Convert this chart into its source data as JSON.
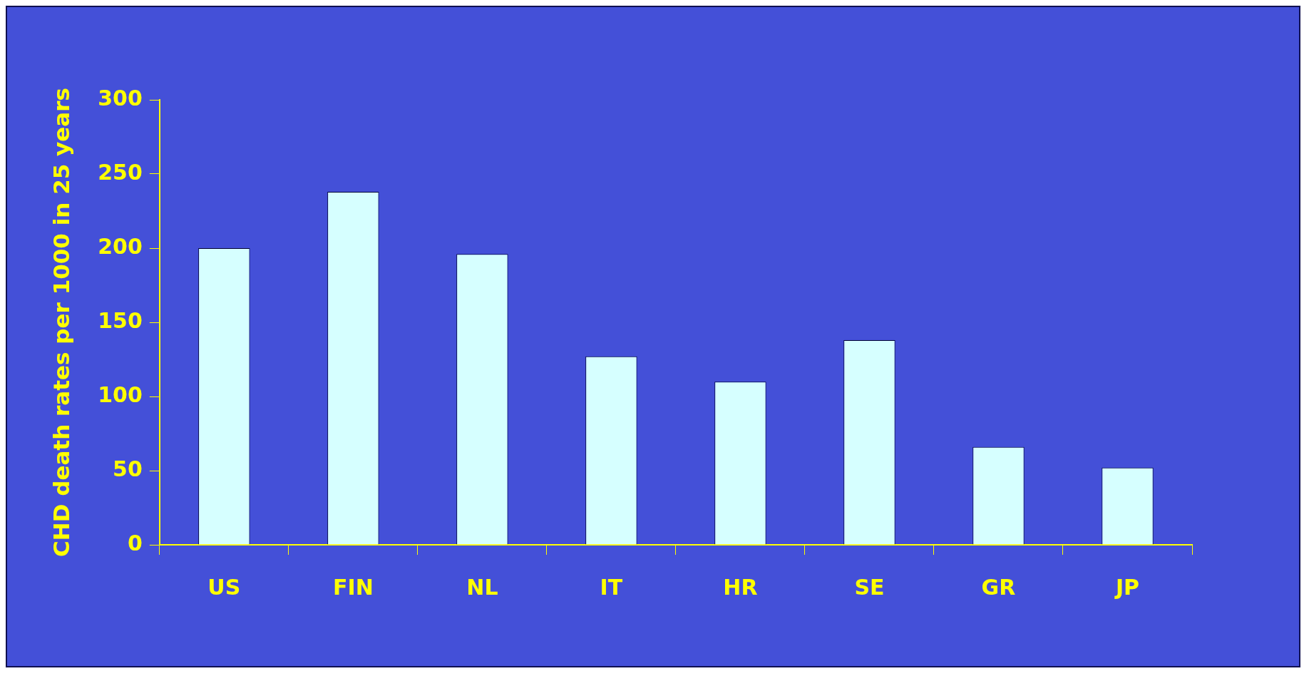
{
  "chart_data": {
    "type": "bar",
    "ylabel": "CHD death rates per 1000 in 25 years",
    "categories": [
      "US",
      "FIN",
      "NL",
      "IT",
      "HR",
      "SE",
      "GR",
      "JP"
    ],
    "values": [
      200,
      238,
      196,
      127,
      110,
      138,
      66,
      52
    ],
    "color": "#d6ffff",
    "ylim": [
      0,
      300
    ],
    "yticks": [
      0,
      50,
      100,
      150,
      200,
      250,
      300
    ],
    "grid": false,
    "legend": false
  }
}
